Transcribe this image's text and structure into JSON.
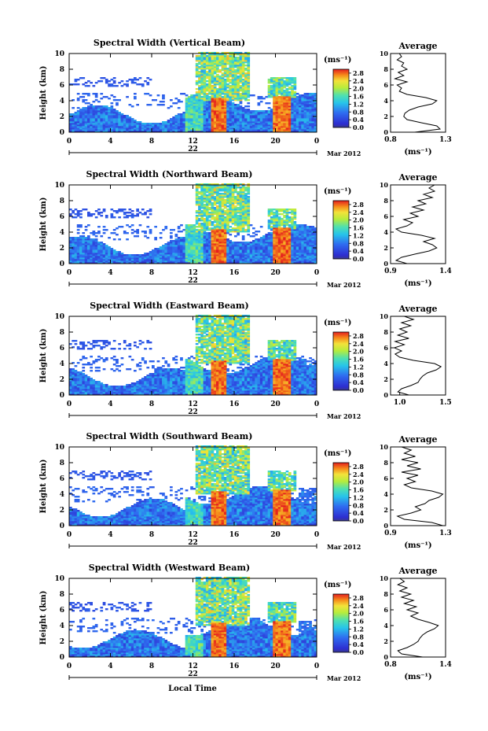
{
  "figure": {
    "xlabel": "Local Time",
    "date_label": "Mar 2012",
    "day_label": "22",
    "unit_label": "(ms⁻¹)",
    "avg_title": "Average"
  },
  "chart_data": [
    {
      "type": "heatmap",
      "title": "Spectral Width (Vertical Beam)",
      "ylabel": "Height (km)",
      "xlabel": "",
      "x_ticks": [
        "0",
        "4",
        "8",
        "12",
        "16",
        "20",
        "0"
      ],
      "xlim": [
        0,
        24
      ],
      "y_ticks": [
        "0",
        "2",
        "4",
        "6",
        "8",
        "10"
      ],
      "ylim": [
        0,
        10
      ],
      "colorbar": {
        "label": "(ms⁻¹)",
        "ticks": [
          "0.0",
          "0.4",
          "0.8",
          "1.2",
          "1.6",
          "2.0",
          "2.4",
          "2.8"
        ],
        "range": [
          0,
          3.0
        ]
      },
      "average_profile": {
        "title": "Average",
        "x_ticks": [
          "0.8",
          "1.3"
        ],
        "xlim": [
          0.8,
          1.3
        ],
        "xlabel": "(ms⁻¹)",
        "points": [
          [
            1.02,
            0
          ],
          [
            1.25,
            0.4
          ],
          [
            1.22,
            0.8
          ],
          [
            1.08,
            1.2
          ],
          [
            0.95,
            1.6
          ],
          [
            0.92,
            2.0
          ],
          [
            0.93,
            2.4
          ],
          [
            0.97,
            2.8
          ],
          [
            1.05,
            3.2
          ],
          [
            1.18,
            3.6
          ],
          [
            1.22,
            4.0
          ],
          [
            1.12,
            4.4
          ],
          [
            0.95,
            4.8
          ],
          [
            0.88,
            5.2
          ],
          [
            0.9,
            5.6
          ],
          [
            0.86,
            6.0
          ],
          [
            0.95,
            6.4
          ],
          [
            0.84,
            6.8
          ],
          [
            0.92,
            7.2
          ],
          [
            0.87,
            7.6
          ],
          [
            0.95,
            8.0
          ],
          [
            0.9,
            8.4
          ],
          [
            0.92,
            8.8
          ],
          [
            0.86,
            9.2
          ],
          [
            0.9,
            9.6
          ],
          [
            0.88,
            10.0
          ]
        ]
      }
    },
    {
      "type": "heatmap",
      "title": "Spectral Width (Northward Beam)",
      "ylabel": "Height (km)",
      "xlabel": "",
      "x_ticks": [
        "0",
        "4",
        "8",
        "12",
        "16",
        "20",
        "0"
      ],
      "xlim": [
        0,
        24
      ],
      "y_ticks": [
        "0",
        "2",
        "4",
        "6",
        "8",
        "10"
      ],
      "ylim": [
        0,
        10
      ],
      "colorbar": {
        "label": "(ms⁻¹)",
        "ticks": [
          "0.0",
          "0.4",
          "0.8",
          "1.2",
          "1.6",
          "2.0",
          "2.4",
          "2.8"
        ],
        "range": [
          0,
          3.0
        ]
      },
      "average_profile": {
        "title": "Average",
        "x_ticks": [
          "0.9",
          "1.4"
        ],
        "xlim": [
          0.9,
          1.4
        ],
        "xlabel": "(ms⁻¹)",
        "points": [
          [
            1.05,
            0
          ],
          [
            0.95,
            0.4
          ],
          [
            1.0,
            0.8
          ],
          [
            1.12,
            1.2
          ],
          [
            1.25,
            1.6
          ],
          [
            1.32,
            2.0
          ],
          [
            1.28,
            2.4
          ],
          [
            1.2,
            2.8
          ],
          [
            1.3,
            3.2
          ],
          [
            1.18,
            3.6
          ],
          [
            1.0,
            4.0
          ],
          [
            0.95,
            4.4
          ],
          [
            1.05,
            4.8
          ],
          [
            1.1,
            5.2
          ],
          [
            1.02,
            5.6
          ],
          [
            1.15,
            6.0
          ],
          [
            1.08,
            6.4
          ],
          [
            1.2,
            6.8
          ],
          [
            1.1,
            7.2
          ],
          [
            1.22,
            7.6
          ],
          [
            1.15,
            8.0
          ],
          [
            1.28,
            8.4
          ],
          [
            1.2,
            8.8
          ],
          [
            1.3,
            9.2
          ],
          [
            1.25,
            9.6
          ],
          [
            1.3,
            10.0
          ]
        ]
      }
    },
    {
      "type": "heatmap",
      "title": "Spectral Width (Eastward Beam)",
      "ylabel": "Height (km)",
      "xlabel": "",
      "x_ticks": [
        "0",
        "4",
        "8",
        "12",
        "16",
        "20",
        "0"
      ],
      "xlim": [
        0,
        24
      ],
      "y_ticks": [
        "0",
        "2",
        "4",
        "6",
        "8",
        "10"
      ],
      "ylim": [
        0,
        10
      ],
      "colorbar": {
        "label": "(ms⁻¹)",
        "ticks": [
          "0.0",
          "0.4",
          "0.8",
          "1.2",
          "1.6",
          "2.0",
          "2.4",
          "2.8"
        ],
        "range": [
          0,
          3.0
        ]
      },
      "average_profile": {
        "title": "Average",
        "x_ticks": [
          "1.0",
          "1.5"
        ],
        "xlim": [
          0.9,
          1.5
        ],
        "xlabel": "",
        "points": [
          [
            1.1,
            0
          ],
          [
            0.98,
            0.4
          ],
          [
            1.02,
            0.8
          ],
          [
            1.12,
            1.2
          ],
          [
            1.2,
            1.6
          ],
          [
            1.22,
            2.0
          ],
          [
            1.25,
            2.4
          ],
          [
            1.3,
            2.8
          ],
          [
            1.4,
            3.2
          ],
          [
            1.45,
            3.6
          ],
          [
            1.38,
            4.0
          ],
          [
            1.15,
            4.4
          ],
          [
            1.0,
            4.8
          ],
          [
            0.95,
            5.2
          ],
          [
            1.02,
            5.6
          ],
          [
            0.94,
            6.0
          ],
          [
            1.05,
            6.4
          ],
          [
            0.95,
            6.8
          ],
          [
            1.1,
            7.2
          ],
          [
            0.98,
            7.6
          ],
          [
            1.08,
            8.0
          ],
          [
            1.0,
            8.4
          ],
          [
            1.12,
            8.8
          ],
          [
            1.02,
            9.2
          ],
          [
            1.15,
            9.6
          ],
          [
            1.05,
            10.0
          ]
        ]
      }
    },
    {
      "type": "heatmap",
      "title": "Spectral Width (Southward Beam)",
      "ylabel": "Height (km)",
      "xlabel": "",
      "x_ticks": [
        "0",
        "4",
        "8",
        "12",
        "16",
        "20",
        "0"
      ],
      "xlim": [
        0,
        24
      ],
      "y_ticks": [
        "0",
        "2",
        "4",
        "6",
        "8",
        "10"
      ],
      "ylim": [
        0,
        10
      ],
      "colorbar": {
        "label": "(ms⁻¹)",
        "ticks": [
          "0.0",
          "0.4",
          "0.8",
          "1.2",
          "1.6",
          "2.0",
          "2.4",
          "2.8"
        ],
        "range": [
          0,
          3.0
        ]
      },
      "average_profile": {
        "title": "Average",
        "x_ticks": [
          "0.9",
          "1.3"
        ],
        "xlim": [
          0.9,
          1.3
        ],
        "xlabel": "(ms⁻¹)",
        "points": [
          [
            1.28,
            0
          ],
          [
            1.2,
            0.4
          ],
          [
            1.0,
            0.8
          ],
          [
            0.95,
            1.2
          ],
          [
            1.05,
            1.6
          ],
          [
            1.12,
            2.0
          ],
          [
            1.08,
            2.4
          ],
          [
            1.15,
            2.8
          ],
          [
            1.18,
            3.2
          ],
          [
            1.25,
            3.6
          ],
          [
            1.28,
            4.0
          ],
          [
            1.2,
            4.4
          ],
          [
            1.05,
            4.8
          ],
          [
            1.0,
            5.2
          ],
          [
            1.08,
            5.6
          ],
          [
            1.02,
            6.0
          ],
          [
            1.1,
            6.4
          ],
          [
            0.98,
            6.8
          ],
          [
            1.12,
            7.2
          ],
          [
            1.02,
            7.6
          ],
          [
            1.1,
            8.0
          ],
          [
            0.98,
            8.4
          ],
          [
            1.08,
            8.8
          ],
          [
            1.0,
            9.2
          ],
          [
            1.05,
            9.6
          ],
          [
            0.98,
            10.0
          ]
        ]
      }
    },
    {
      "type": "heatmap",
      "title": "Spectral Width (Westward Beam)",
      "ylabel": "Height (km)",
      "xlabel": "Local Time",
      "x_ticks": [
        "0",
        "4",
        "8",
        "12",
        "16",
        "20",
        "0"
      ],
      "xlim": [
        0,
        24
      ],
      "y_ticks": [
        "0",
        "2",
        "4",
        "6",
        "8",
        "10"
      ],
      "ylim": [
        0,
        10
      ],
      "colorbar": {
        "label": "(ms⁻¹)",
        "ticks": [
          "0.0",
          "0.4",
          "0.8",
          "1.2",
          "1.6",
          "2.0",
          "2.4",
          "2.8"
        ],
        "range": [
          0,
          3.0
        ]
      },
      "average_profile": {
        "title": "Average",
        "x_ticks": [
          "0.8",
          "1.4"
        ],
        "xlim": [
          0.8,
          1.4
        ],
        "xlabel": "(ms⁻¹)",
        "points": [
          [
            1.15,
            0
          ],
          [
            0.92,
            0.4
          ],
          [
            0.88,
            0.8
          ],
          [
            0.98,
            1.2
          ],
          [
            1.05,
            1.6
          ],
          [
            1.1,
            2.0
          ],
          [
            1.12,
            2.4
          ],
          [
            1.15,
            2.8
          ],
          [
            1.2,
            3.2
          ],
          [
            1.28,
            3.6
          ],
          [
            1.32,
            4.0
          ],
          [
            1.22,
            4.4
          ],
          [
            1.1,
            4.8
          ],
          [
            1.02,
            5.2
          ],
          [
            1.1,
            5.6
          ],
          [
            0.98,
            6.0
          ],
          [
            1.08,
            6.4
          ],
          [
            0.95,
            6.8
          ],
          [
            1.05,
            7.2
          ],
          [
            0.92,
            7.6
          ],
          [
            1.02,
            8.0
          ],
          [
            0.9,
            8.4
          ],
          [
            0.98,
            8.8
          ],
          [
            0.88,
            9.2
          ],
          [
            0.95,
            9.6
          ],
          [
            0.9,
            10.0
          ]
        ]
      }
    }
  ]
}
